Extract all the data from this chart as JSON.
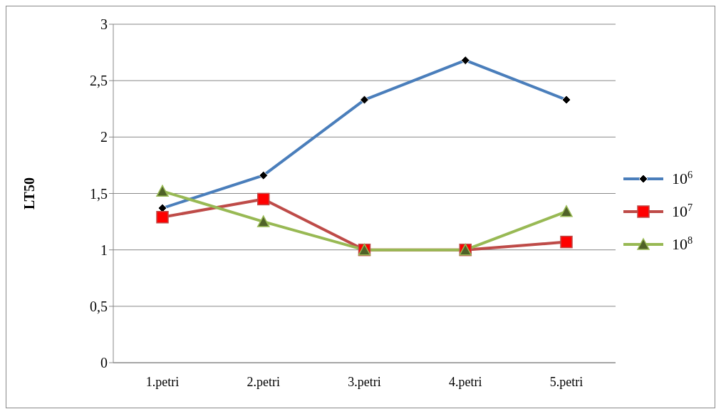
{
  "chart_data": {
    "type": "line",
    "ylabel": "LT50",
    "categories": [
      "1.petri",
      "2.petri",
      "3.petri",
      "4.petri",
      "5.petri"
    ],
    "series": [
      {
        "name": "10$^{6}$",
        "color": "#4a7ebb",
        "marker": "diamond",
        "values": [
          1.37,
          1.66,
          2.33,
          2.68,
          2.33
        ]
      },
      {
        "name": "10$^{7}$",
        "color": "#be4b48",
        "marker": "square",
        "values": [
          1.29,
          1.45,
          1,
          1,
          1.07
        ]
      },
      {
        "name": "10$^{8}$",
        "color": "#98b954",
        "marker": "triangle",
        "values": [
          1.52,
          1.25,
          1,
          1,
          1.34
        ]
      }
    ],
    "ylim": [
      0,
      3
    ],
    "yticks": [
      0,
      {
        "value": 0.5,
        "label": "0,5"
      },
      1,
      {
        "value": 1.5,
        "label": "1,5"
      },
      2,
      {
        "value": 2.5,
        "label": "2,5"
      },
      3
    ],
    "grid": "y",
    "legend": "right"
  }
}
